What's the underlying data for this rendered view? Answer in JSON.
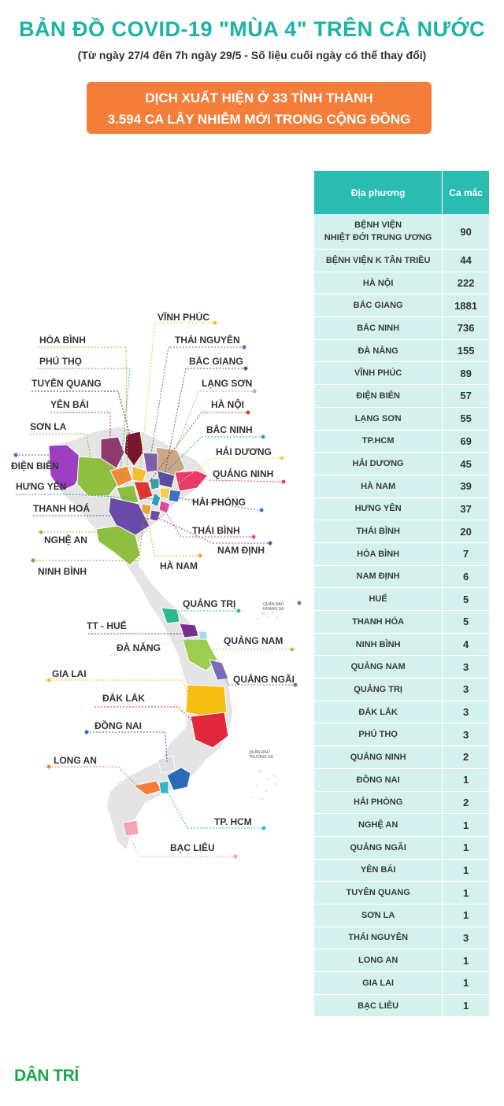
{
  "header": {
    "title": "BẢN ĐỒ COVID-19 \"MÙA 4\" TRÊN CẢ NƯỚC",
    "subtitle": "(Từ ngày 27/4 đến 7h ngày 29/5 - Số liệu cuối ngày có thể thay đổi)"
  },
  "banner": {
    "line1": "DỊCH XUẤT HIỆN Ở 33 TỈNH THÀNH",
    "line2": "3.594 CA LÂY NHIỄM MỚI TRONG CỘNG ĐỒNG"
  },
  "table": {
    "header_place": "Địa phương",
    "header_cases": "Ca mắc",
    "rows": [
      {
        "place_line1": "BỆNH VIỆN",
        "place_line2": "NHIỆT ĐỚI TRUNG ƯƠNG",
        "cases": "90"
      },
      {
        "place": "BỆNH VIỆN K TÂN TRIỀU",
        "cases": "44"
      },
      {
        "place": "HÀ NỘI",
        "cases": "222"
      },
      {
        "place": "BẮC GIANG",
        "cases": "1881"
      },
      {
        "place": "BẮC NINH",
        "cases": "736"
      },
      {
        "place": "ĐÀ NẴNG",
        "cases": "155"
      },
      {
        "place": "VĨNH PHÚC",
        "cases": "89"
      },
      {
        "place": "ĐIỆN BIÊN",
        "cases": "57"
      },
      {
        "place": "LẠNG SƠN",
        "cases": "55"
      },
      {
        "place": "TP.HCM",
        "cases": "69"
      },
      {
        "place": "HẢI DƯƠNG",
        "cases": "45"
      },
      {
        "place": "HÀ NAM",
        "cases": "39"
      },
      {
        "place": "HƯNG YÊN",
        "cases": "37"
      },
      {
        "place": "THÁI BÌNH",
        "cases": "20"
      },
      {
        "place": "HÒA BÌNH",
        "cases": "7"
      },
      {
        "place": "NAM ĐỊNH",
        "cases": "6"
      },
      {
        "place": "HUẾ",
        "cases": "5"
      },
      {
        "place": "THANH HÓA",
        "cases": "5"
      },
      {
        "place": "NINH BÌNH",
        "cases": "4"
      },
      {
        "place": "QUẢNG NAM",
        "cases": "3"
      },
      {
        "place": "QUẢNG TRỊ",
        "cases": "3"
      },
      {
        "place": "ĐẮK LẮK",
        "cases": "3"
      },
      {
        "place": "PHÚ THỌ",
        "cases": "3"
      },
      {
        "place": "QUẢNG NINH",
        "cases": "2"
      },
      {
        "place": "ĐỒNG NAI",
        "cases": "1"
      },
      {
        "place": "HẢI PHÒNG",
        "cases": "2"
      },
      {
        "place": "NGHỆ AN",
        "cases": "1"
      },
      {
        "place": "QUẢNG NGÃI",
        "cases": "1"
      },
      {
        "place": "YÊN BÁI",
        "cases": "1"
      },
      {
        "place": "TUYÊN QUANG",
        "cases": "1"
      },
      {
        "place": "SƠN LA",
        "cases": "1"
      },
      {
        "place": "THÁI NGUYÊN",
        "cases": "3"
      },
      {
        "place": "LONG AN",
        "cases": "1"
      },
      {
        "place": "GIA LAI",
        "cases": "1"
      },
      {
        "place": "BẠC LIÊU",
        "cases": "1"
      }
    ]
  },
  "map_labels": {
    "vinh_phuc": "VĨNH PHÚC",
    "hoa_binh": "HÒA BÌNH",
    "thai_nguyen": "THÁI NGUYÊN",
    "phu_tho": "PHÚ THỌ",
    "bac_giang": "BẮC GIANG",
    "tuyen_quang": "TUYÊN QUANG",
    "lang_son": "LẠNG SƠN",
    "yen_bai": "YÊN BÁI",
    "ha_noi": "HÀ NỘI",
    "son_la": "SƠN LA",
    "bac_ninh": "BẮC NINH",
    "dien_bien": "ĐIỆN BIÊN",
    "hai_duong": "HẢI DƯƠNG",
    "hung_yen": "HƯNG YÊN",
    "quang_ninh": "QUẢNG NINH",
    "thanh_hoa": "THANH HOÁ",
    "hai_phong": "HẢI PHÒNG",
    "thai_binh": "THÁI BÌNH",
    "nghe_an": "NGHỆ AN",
    "nam_dinh": "NAM ĐỊNH",
    "ninh_binh": "NINH BÌNH",
    "ha_nam": "HÀ NAM",
    "quang_tri": "QUẢNG TRỊ",
    "hoang_sa_1": "QUẦN ĐẢO",
    "hoang_sa_2": "HOÀNG SA",
    "tt_hue": "TT - HUẾ",
    "quang_nam": "QUẢNG NAM",
    "da_nang": "ĐÀ NẴNG",
    "gia_lai": "GIA LAI",
    "quang_ngai": "QUẢNG NGÃI",
    "dak_lak": "ĐẮK LẮK",
    "dong_nai": "ĐỒNG NAI",
    "truong_sa_1": "QUẦN ĐẢO",
    "truong_sa_2": "TRƯỜNG SA",
    "long_an": "LONG AN",
    "tp_hcm": "TP. HCM",
    "bac_lieu": "BẠC LIÊU"
  },
  "colors": {
    "title": "#1ab3a6",
    "banner": "#f47d3a",
    "table_header": "#2bbcb1",
    "table_row": "#d4f1ee",
    "map_base": "#e4e4e4",
    "logo": "#1aa64a"
  },
  "footer": {
    "logo": "DÂN TRÍ"
  }
}
